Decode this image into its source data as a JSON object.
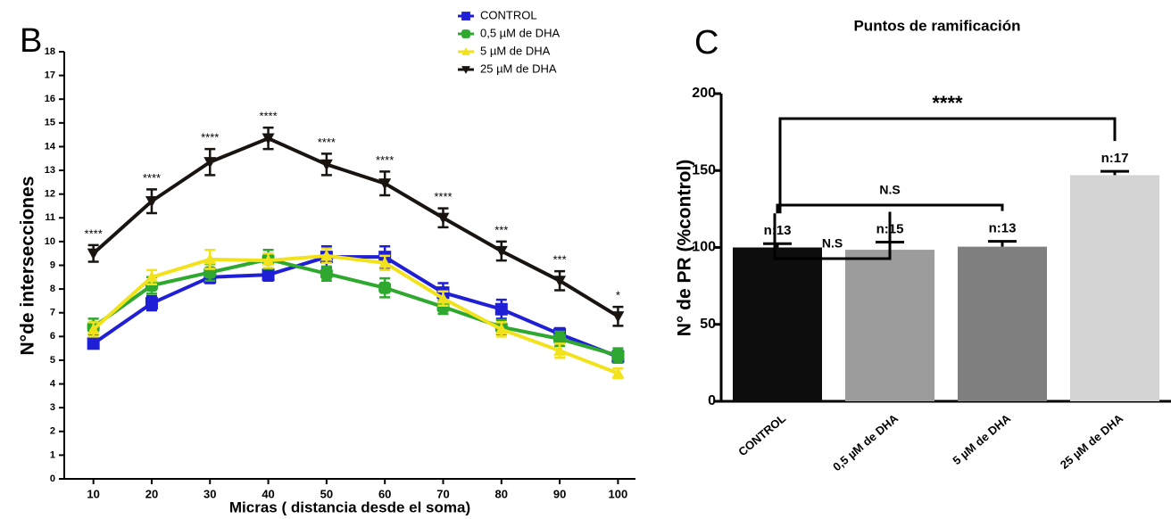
{
  "chart_data": [
    {
      "type": "line",
      "panel": "B",
      "xlabel": "Micras ( distancia desde el soma)",
      "ylabel": "N°de intersecciones",
      "x": [
        10,
        20,
        30,
        40,
        50,
        60,
        70,
        80,
        90,
        100
      ],
      "xlim": [
        5,
        103
      ],
      "xticks": [
        10,
        20,
        30,
        40,
        50,
        60,
        70,
        80,
        90,
        100
      ],
      "ylim": [
        0,
        18
      ],
      "yticks": [
        0,
        1,
        2,
        3,
        4,
        5,
        6,
        7,
        8,
        9,
        10,
        11,
        12,
        13,
        14,
        15,
        16,
        17,
        18
      ],
      "series": [
        {
          "name": "CONTROL",
          "color": "#1f1fd6",
          "marker": "square",
          "values": [
            5.7,
            7.4,
            8.5,
            8.6,
            9.35,
            9.35,
            7.85,
            7.15,
            6.1,
            5.15
          ],
          "errors": [
            0.2,
            0.3,
            0.25,
            0.25,
            0.45,
            0.45,
            0.4,
            0.4,
            0.25,
            0.25
          ]
        },
        {
          "name": "0,5 µM  de DHA",
          "color": "#2ea82e",
          "marker": "octagon",
          "values": [
            6.4,
            8.15,
            8.7,
            9.25,
            8.65,
            8.05,
            7.25,
            6.4,
            5.9,
            5.2
          ],
          "errors": [
            0.35,
            0.35,
            0.35,
            0.4,
            0.3,
            0.4,
            0.3,
            0.3,
            0.3,
            0.3
          ]
        },
        {
          "name": "5    µM  de DHA",
          "color": "#f2e21c",
          "marker": "triangle-up",
          "values": [
            6.3,
            8.5,
            9.25,
            9.2,
            9.4,
            9.1,
            7.6,
            6.3,
            5.4,
            4.45
          ],
          "errors": [
            0.3,
            0.3,
            0.4,
            0.3,
            0.3,
            0.3,
            0.3,
            0.3,
            0.3,
            0.2
          ]
        },
        {
          "name": "25 µM  de DHA",
          "color": "#1a1410",
          "marker": "triangle-down",
          "values": [
            9.5,
            11.7,
            13.35,
            14.35,
            13.25,
            12.45,
            11.0,
            9.6,
            8.35,
            6.85
          ],
          "errors": [
            0.35,
            0.5,
            0.55,
            0.45,
            0.45,
            0.5,
            0.4,
            0.4,
            0.4,
            0.4
          ]
        }
      ],
      "annotations": [
        "****",
        "****",
        "****",
        "****",
        "****",
        "****",
        "****",
        "***",
        "***",
        "*"
      ]
    },
    {
      "type": "bar",
      "panel": "C",
      "title": "Puntos de ramificación",
      "ylabel": "N° de PR (%control)",
      "categories": [
        "CONTROL",
        "0,5 µM de DHA",
        "5 µM  de DHA",
        "25 µM  de DHA"
      ],
      "values": [
        100,
        98.5,
        100.5,
        147
      ],
      "errors": [
        2.5,
        5,
        3.5,
        2.5
      ],
      "colors": [
        "#0d0d0d",
        "#9c9c9c",
        "#7f7f7f",
        "#d4d4d4"
      ],
      "n_labels": [
        "n:13",
        "n:15",
        "n:13",
        "n:17"
      ],
      "ylim": [
        0,
        200
      ],
      "yticks": [
        0,
        50,
        100,
        150,
        200
      ],
      "comparisons": [
        {
          "pair": [
            0,
            1
          ],
          "label": "N.S"
        },
        {
          "pair": [
            0,
            2
          ],
          "label": "N.S"
        },
        {
          "pair": [
            0,
            3
          ],
          "label": "****"
        }
      ]
    }
  ]
}
